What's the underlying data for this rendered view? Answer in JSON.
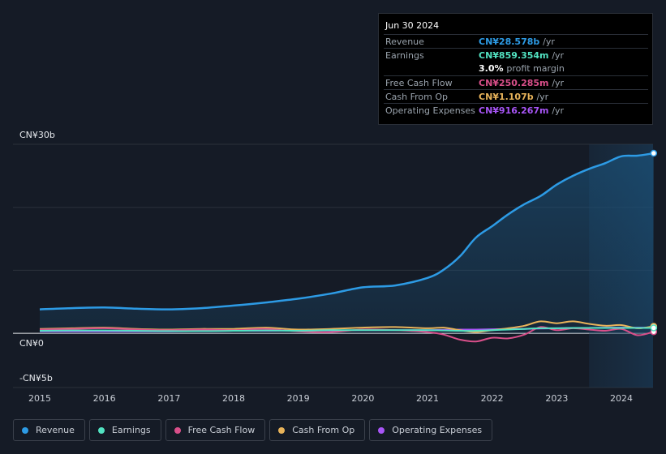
{
  "tooltip": {
    "date": "Jun 30 2024",
    "rows": [
      {
        "label": "Revenue",
        "value": "CN¥28.578b",
        "unit": "/yr",
        "color": "#2d9be5"
      },
      {
        "label": "Earnings",
        "value": "CN¥859.354m",
        "unit": "/yr",
        "color": "#52e3c2"
      },
      {
        "label": "",
        "value": "3.0%",
        "unit": "profit margin",
        "color": "#ffffff"
      },
      {
        "label": "Free Cash Flow",
        "value": "CN¥250.285m",
        "unit": "/yr",
        "color": "#d94f8a"
      },
      {
        "label": "Cash From Op",
        "value": "CN¥1.107b",
        "unit": "/yr",
        "color": "#e8b35a"
      },
      {
        "label": "Operating Expenses",
        "value": "CN¥916.267m",
        "unit": "/yr",
        "color": "#a855f7"
      }
    ]
  },
  "chart_data": {
    "type": "line",
    "ylim": [
      -5,
      30
    ],
    "y_ticks": [
      "CN¥30b",
      "CN¥0",
      "-CN¥5b"
    ],
    "x_ticks": [
      "2015",
      "2016",
      "2017",
      "2018",
      "2019",
      "2020",
      "2021",
      "2022",
      "2023",
      "2024"
    ],
    "grid": true,
    "legend_position": "bottom",
    "highlight_start": 2023.5,
    "x": [
      2015.0,
      2015.5,
      2016.0,
      2016.5,
      2017.0,
      2017.5,
      2018.0,
      2018.5,
      2019.0,
      2019.5,
      2020.0,
      2020.5,
      2021.0,
      2021.25,
      2021.5,
      2021.75,
      2022.0,
      2022.25,
      2022.5,
      2022.75,
      2023.0,
      2023.25,
      2023.5,
      2023.75,
      2024.0,
      2024.25,
      2024.5
    ],
    "series": [
      {
        "name": "Revenue",
        "color": "#2d9be5",
        "values": [
          3.8,
          4.0,
          4.1,
          3.9,
          3.8,
          4.0,
          4.4,
          4.9,
          5.5,
          6.3,
          7.3,
          7.6,
          8.8,
          10.1,
          12.2,
          15.2,
          17.0,
          18.9,
          20.5,
          21.8,
          23.6,
          25.0,
          26.1,
          27.0,
          28.1,
          28.2,
          28.578
        ]
      },
      {
        "name": "Earnings",
        "color": "#52e3c2",
        "values": [
          0.4,
          0.45,
          0.45,
          0.4,
          0.35,
          0.35,
          0.4,
          0.45,
          0.4,
          0.5,
          0.5,
          0.5,
          0.5,
          0.45,
          0.4,
          0.4,
          0.5,
          0.6,
          0.7,
          0.8,
          0.8,
          0.85,
          0.85,
          0.85,
          0.86,
          0.86,
          0.859
        ]
      },
      {
        "name": "Free Cash Flow",
        "color": "#d94f8a",
        "values": [
          0.6,
          0.7,
          0.8,
          0.6,
          0.5,
          0.6,
          0.5,
          0.7,
          0.3,
          0.2,
          0.6,
          0.5,
          0.2,
          -0.2,
          -1.0,
          -1.3,
          -0.7,
          -0.8,
          -0.2,
          1.0,
          0.5,
          0.8,
          0.6,
          0.4,
          0.7,
          -0.3,
          0.25
        ]
      },
      {
        "name": "Cash From Op",
        "color": "#e8b35a",
        "values": [
          0.7,
          0.8,
          0.9,
          0.7,
          0.6,
          0.7,
          0.7,
          0.9,
          0.6,
          0.7,
          0.9,
          1.0,
          0.8,
          0.9,
          0.5,
          0.2,
          0.5,
          0.8,
          1.2,
          1.9,
          1.6,
          1.9,
          1.5,
          1.2,
          1.3,
          0.8,
          1.107
        ]
      },
      {
        "name": "Operating Expenses",
        "color": "#a855f7",
        "values": [
          0.3,
          0.3,
          0.3,
          0.3,
          0.3,
          0.35,
          0.4,
          0.4,
          0.45,
          0.45,
          0.5,
          0.5,
          0.5,
          0.55,
          0.6,
          0.6,
          0.65,
          0.7,
          0.7,
          0.75,
          0.8,
          0.85,
          0.85,
          0.9,
          0.9,
          0.9,
          0.916
        ]
      }
    ]
  },
  "legend": [
    {
      "label": "Revenue",
      "color": "#2d9be5"
    },
    {
      "label": "Earnings",
      "color": "#52e3c2"
    },
    {
      "label": "Free Cash Flow",
      "color": "#d94f8a"
    },
    {
      "label": "Cash From Op",
      "color": "#e8b35a"
    },
    {
      "label": "Operating Expenses",
      "color": "#a855f7"
    }
  ]
}
